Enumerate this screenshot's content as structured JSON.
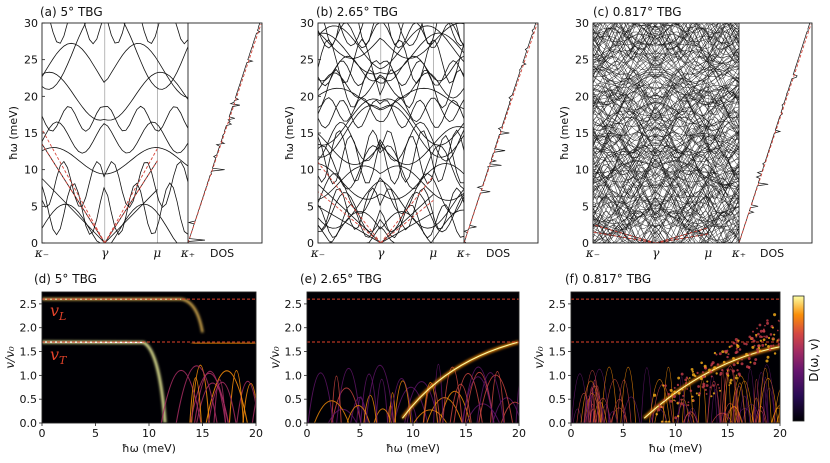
{
  "figure": {
    "top_panels": [
      {
        "label": "(a) 5° TBG",
        "angle": 5.0,
        "density": 1
      },
      {
        "label": "(b) 2.65° TBG",
        "angle": 2.65,
        "density": 3
      },
      {
        "label": "(c) 0.817° TBG",
        "angle": 0.817,
        "density": 22
      }
    ],
    "bottom_panels": [
      {
        "label": "(d) 5° TBG",
        "angle": 5.0
      },
      {
        "label": "(e) 2.65° TBG",
        "angle": 2.65
      },
      {
        "label": "(f) 0.817° TBG",
        "angle": 0.817
      }
    ],
    "dos_label": "DOS",
    "symmetry_points": [
      "κ₋",
      "γ",
      "μ",
      "κ₊"
    ],
    "v_L_label": "v",
    "v_L_sub": "L",
    "v_T_label": "v",
    "v_T_sub": "T",
    "colorbar_label": "D(ω, v)"
  },
  "chart_data": [
    {
      "type": "line",
      "panel": "a",
      "title": "(a) 5° TBG",
      "xlabel": "",
      "ylabel": "ħω (meV)",
      "ylim": [
        0,
        30
      ],
      "yticks": [
        0,
        5,
        10,
        15,
        20,
        25,
        30
      ],
      "xticks": [
        "κ₋",
        "γ",
        "μ",
        "κ₊"
      ],
      "dos_label": "DOS",
      "series": [
        {
          "name": "phonon bands",
          "color": "#111111"
        },
        {
          "name": "linear dispersion",
          "color": "#d6453a",
          "style": "dashed"
        }
      ]
    },
    {
      "type": "line",
      "panel": "b",
      "title": "(b) 2.65° TBG",
      "ylabel": "ħω (meV)",
      "ylim": [
        0,
        30
      ],
      "yticks": [
        0,
        5,
        10,
        15,
        20,
        25,
        30
      ],
      "xticks": [
        "κ₋",
        "γ",
        "μ",
        "κ₊"
      ],
      "dos_label": "DOS"
    },
    {
      "type": "line",
      "panel": "c",
      "title": "(c) 0.817° TBG",
      "ylabel": "ħω (meV)",
      "ylim": [
        0,
        30
      ],
      "yticks": [
        0,
        5,
        10,
        15,
        20,
        25,
        30
      ],
      "xticks": [
        "κ₋",
        "γ",
        "μ",
        "κ₊"
      ],
      "dos_label": "DOS"
    },
    {
      "type": "heatmap",
      "panel": "d",
      "title": "(d) 5° TBG",
      "xlabel": "ħω (meV)",
      "ylabel": "v/v₀",
      "xlim": [
        0,
        20
      ],
      "ylim": [
        0,
        2.75
      ],
      "xticks": [
        0,
        5,
        10,
        15,
        20
      ],
      "yticks": [
        0.0,
        0.5,
        1.0,
        1.5,
        2.0,
        2.5
      ],
      "reference_lines": [
        2.6,
        1.7
      ],
      "annotations": [
        "v_L",
        "v_T"
      ]
    },
    {
      "type": "heatmap",
      "panel": "e",
      "title": "(e) 2.65° TBG",
      "xlabel": "ħω (meV)",
      "ylabel": "v/v₀",
      "xlim": [
        0,
        20
      ],
      "ylim": [
        0,
        2.75
      ],
      "xticks": [
        0,
        5,
        10,
        15,
        20
      ],
      "yticks": [
        0.0,
        0.5,
        1.0,
        1.5,
        2.0,
        2.5
      ],
      "reference_lines": [
        2.6,
        1.7
      ]
    },
    {
      "type": "heatmap",
      "panel": "f",
      "title": "(f) 0.817° TBG",
      "xlabel": "ħω (meV)",
      "ylabel": "v/v₀",
      "xlim": [
        0,
        20
      ],
      "ylim": [
        0,
        2.75
      ],
      "xticks": [
        0,
        5,
        10,
        15,
        20
      ],
      "yticks": [
        0.0,
        0.5,
        1.0,
        1.5,
        2.0,
        2.5
      ],
      "reference_lines": [
        2.6,
        1.7
      ],
      "colorbar_label": "D(ω, v)"
    }
  ]
}
